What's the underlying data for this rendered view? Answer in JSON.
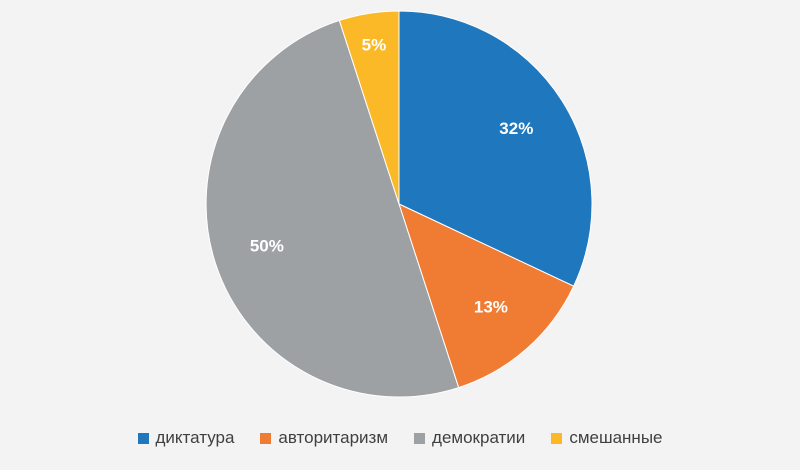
{
  "chart_data": {
    "type": "pie",
    "title": "",
    "categories": [
      "диктатура",
      "авторитаризм",
      "демократии",
      "смешанные"
    ],
    "values": [
      32,
      13,
      50,
      5
    ],
    "labels": [
      "32%",
      "13%",
      "50%",
      "5%"
    ],
    "colors": [
      "#1f77bd",
      "#f07c33",
      "#9da1a4",
      "#fbb827"
    ],
    "legend_position": "bottom"
  }
}
